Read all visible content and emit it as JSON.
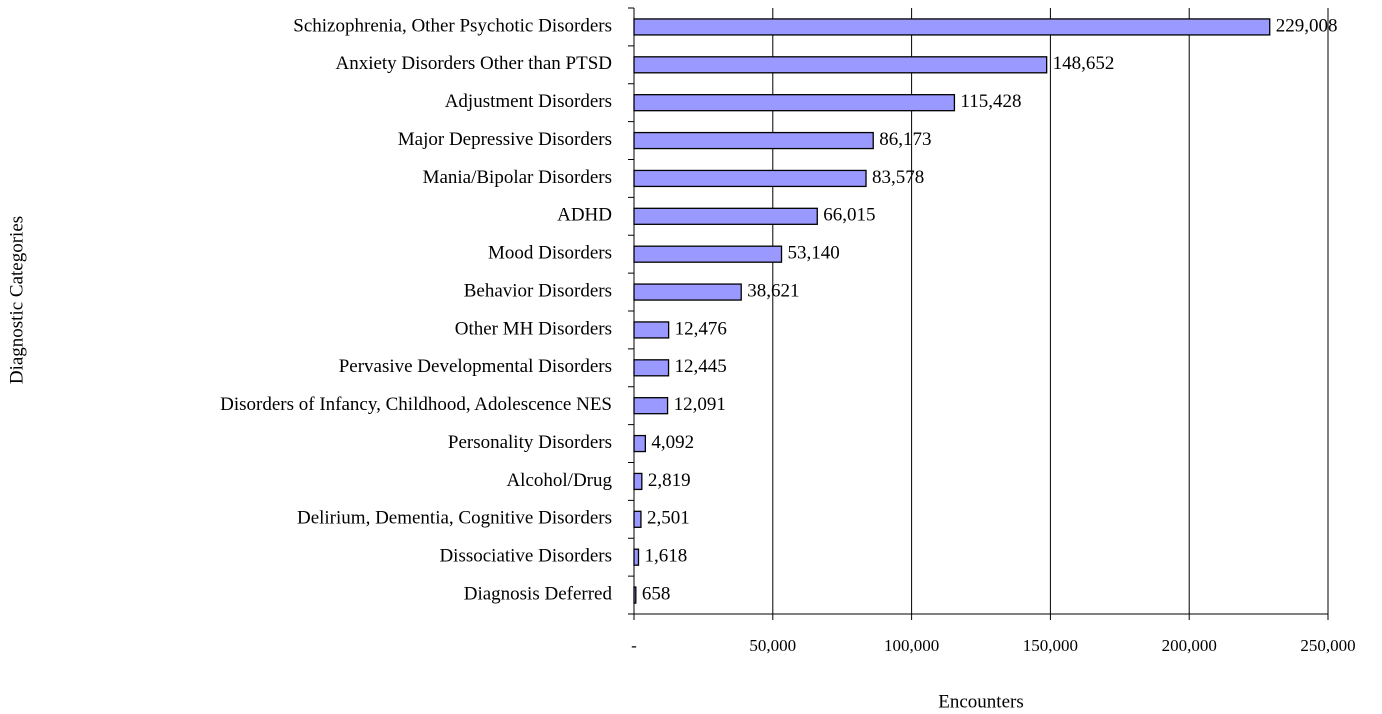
{
  "chart_data": {
    "type": "bar",
    "orientation": "horizontal",
    "x_label": "Encounters",
    "y_label": "Diagnostic Categories",
    "categories": [
      "Schizophrenia, Other Psychotic Disorders",
      "Anxiety Disorders Other than PTSD",
      "Adjustment Disorders",
      "Major Depressive Disorders",
      "Mania/Bipolar Disorders",
      "ADHD",
      "Mood Disorders",
      "Behavior Disorders",
      "Other MH Disorders",
      "Pervasive Developmental Disorders",
      "Disorders of Infancy, Childhood, Adolescence NES",
      "Personality Disorders",
      "Alcohol/Drug",
      "Delirium, Dementia, Cognitive Disorders",
      "Dissociative Disorders",
      "Diagnosis Deferred"
    ],
    "values": [
      229008,
      148652,
      115428,
      86173,
      83578,
      66015,
      53140,
      38621,
      12476,
      12445,
      12091,
      4092,
      2819,
      2501,
      1618,
      658
    ],
    "value_labels": [
      "229,008",
      "148,652",
      "115,428",
      "86,173",
      "83,578",
      "66,015",
      "53,140",
      "38,621",
      "12,476",
      "12,445",
      "12,091",
      "4,092",
      "2,819",
      "2,501",
      "1,618",
      "658"
    ],
    "color": "#9999ff",
    "xlim": [
      0,
      250000
    ],
    "xticks": [
      {
        "value": 0,
        "label": "-"
      },
      {
        "value": 50000,
        "label": "50,000"
      },
      {
        "value": 100000,
        "label": "100,000"
      },
      {
        "value": 150000,
        "label": "150,000"
      },
      {
        "value": 200000,
        "label": "200,000"
      },
      {
        "value": 250000,
        "label": "250,000"
      }
    ],
    "grid": true
  }
}
